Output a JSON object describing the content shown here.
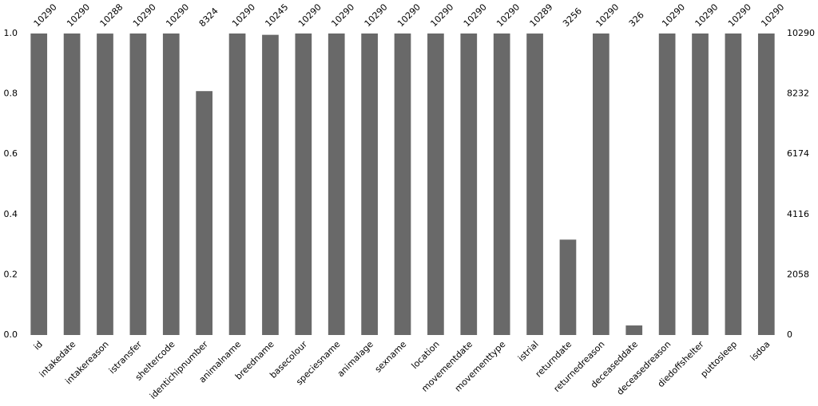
{
  "chart_data": {
    "type": "bar",
    "categories": [
      "id",
      "intakedate",
      "intakereason",
      "istransfer",
      "sheltercode",
      "identichipnumber",
      "animalname",
      "breedname",
      "basecolour",
      "speciesname",
      "animalage",
      "sexname",
      "location",
      "movementdate",
      "movementtype",
      "istrial",
      "returndate",
      "returnedreason",
      "deceaseddate",
      "deceasedreason",
      "diedoffshelter",
      "puttosleep",
      "isdoa"
    ],
    "series": [
      {
        "color": "#696969",
        "axis": "y2",
        "values": [
          10290,
          10290,
          10288,
          10290,
          10290,
          8324,
          10290,
          10245,
          10290,
          10290,
          10290,
          10290,
          10290,
          10290,
          10290,
          10289,
          3256,
          10290,
          326,
          10290,
          10290,
          10290,
          10290
        ]
      }
    ],
    "ylim": [
      0,
      1
    ],
    "yticks": [
      {
        "value": 0,
        "label": "0.0"
      },
      0.2,
      0.4,
      0.6,
      0.8,
      {
        "value": 1,
        "label": "1.0"
      }
    ],
    "y2lim": [
      0,
      10290
    ],
    "y2ticks": [
      0,
      2058,
      4116,
      6174,
      8232,
      10290
    ]
  }
}
